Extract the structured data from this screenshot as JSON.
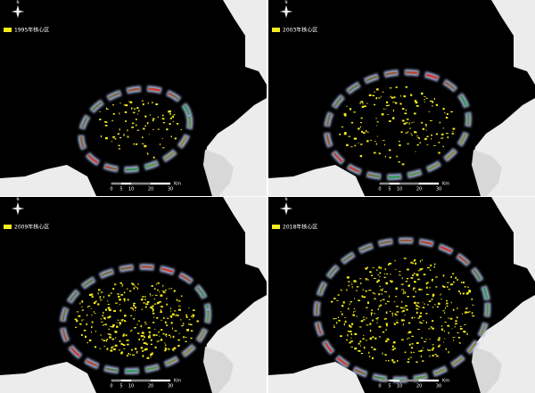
{
  "panels": [
    {
      "legend": "1995年核心区",
      "north": "N",
      "scale_labels": [
        "0",
        "5",
        "10",
        "20",
        "30"
      ],
      "scale_unit": "Km"
    },
    {
      "legend": "2003年核心区",
      "north": "N",
      "scale_labels": [
        "0",
        "5",
        "10",
        "20",
        "30"
      ],
      "scale_unit": "Km"
    },
    {
      "legend": "2009年核心区",
      "north": "N",
      "scale_labels": [
        "0",
        "5",
        "10",
        "20",
        "30"
      ],
      "scale_unit": "Km"
    },
    {
      "legend": "2018年核心区",
      "north": "N",
      "scale_labels": [
        "0",
        "5",
        "10",
        "20",
        "30"
      ],
      "scale_unit": "Km"
    }
  ]
}
